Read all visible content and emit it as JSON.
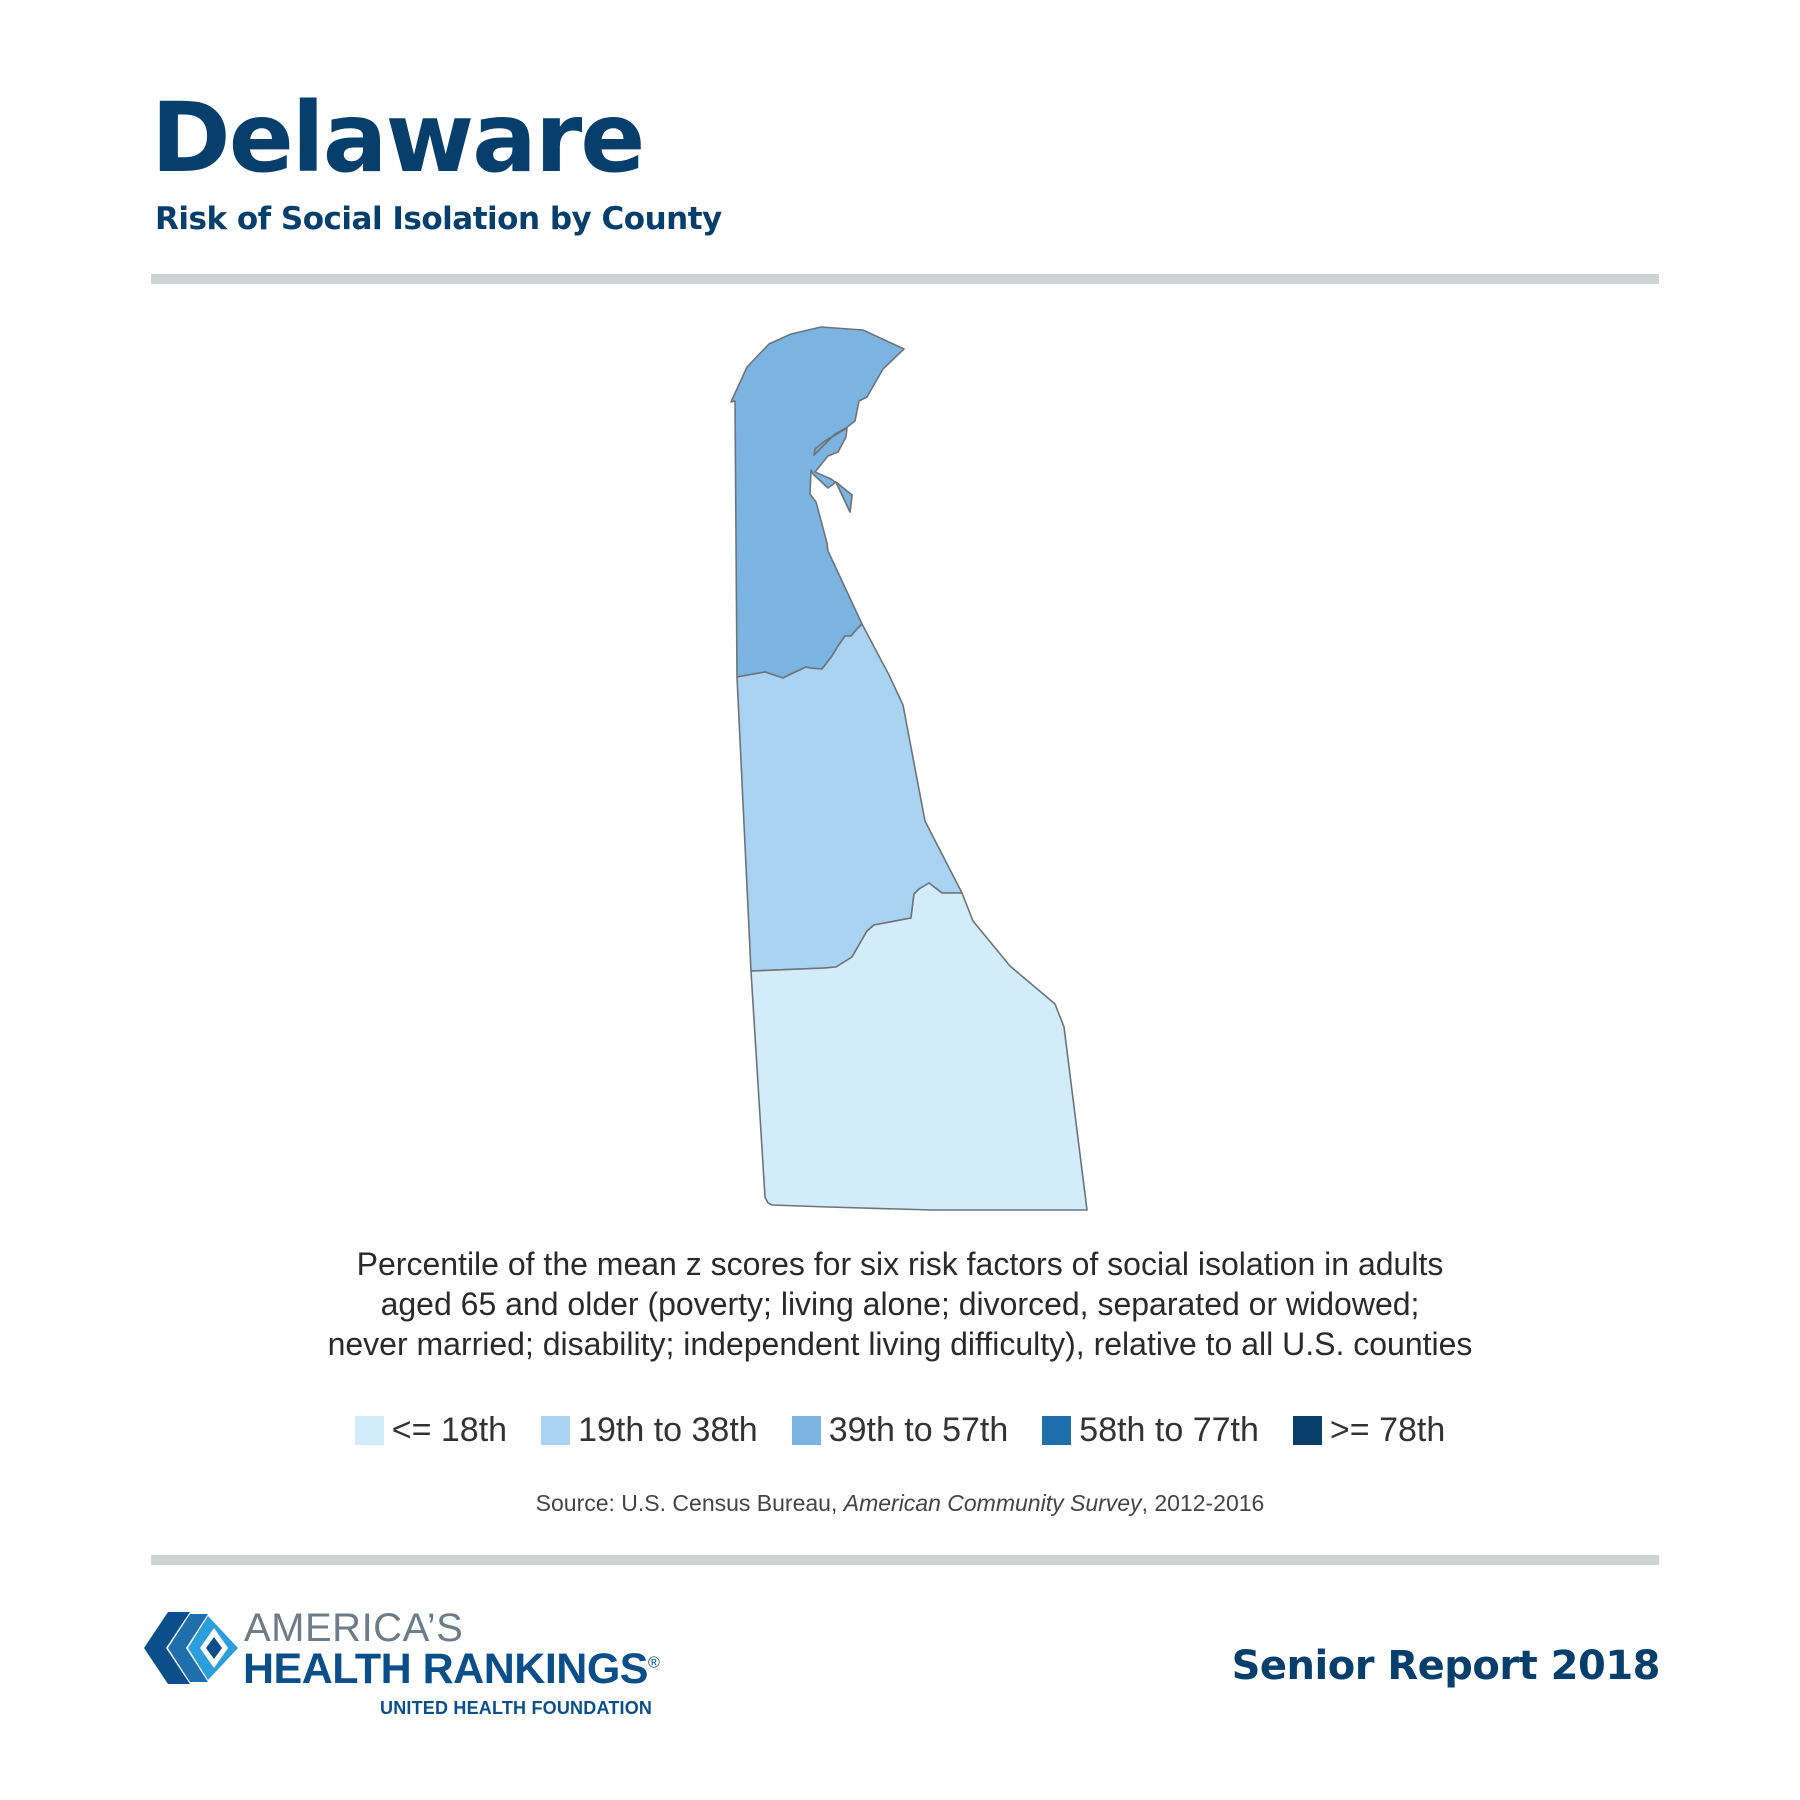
{
  "header": {
    "title": "Delaware",
    "subtitle": "Risk of Social Isolation by County"
  },
  "colors": {
    "title": "#073f6c",
    "rule": "#d0d2d3",
    "scale": [
      "#d3ecfa",
      "#a9d3f1",
      "#7bb4e1",
      "#1e6fab",
      "#073f6c"
    ]
  },
  "map": {
    "state": "Delaware",
    "counties": [
      {
        "name": "New Castle",
        "category_index": 2,
        "color": "#7bb4e1"
      },
      {
        "name": "Kent",
        "category_index": 1,
        "color": "#a9d3f1"
      },
      {
        "name": "Sussex",
        "category_index": 0,
        "color": "#d3ecfa"
      }
    ]
  },
  "description": {
    "lines": [
      "Percentile of the mean z scores for six risk factors of social isolation in adults",
      "aged 65 and older (poverty; living alone; divorced, separated or widowed;",
      "never married; disability; independent living difficulty), relative to all U.S. counties"
    ]
  },
  "legend": {
    "items": [
      {
        "label": "<= 18th",
        "color": "#d3ecfa"
      },
      {
        "label": "19th to 38th",
        "color": "#a9d3f1"
      },
      {
        "label": "39th to 57th",
        "color": "#7bb4e1"
      },
      {
        "label": "58th to 77th",
        "color": "#1e6fab"
      },
      {
        "label": ">= 78th",
        "color": "#073f6c"
      }
    ]
  },
  "source": {
    "prefix": "Source: U.S. Census Bureau, ",
    "publication": "American Community Survey",
    "suffix": ", 2012-2016"
  },
  "footer": {
    "logo_line1": "AMERICA’S",
    "logo_line2": "HEALTH RANKINGS",
    "logo_registered": "®",
    "logo_line3": "UNITED HEALTH FOUNDATION",
    "report": "Senior Report 2018"
  }
}
